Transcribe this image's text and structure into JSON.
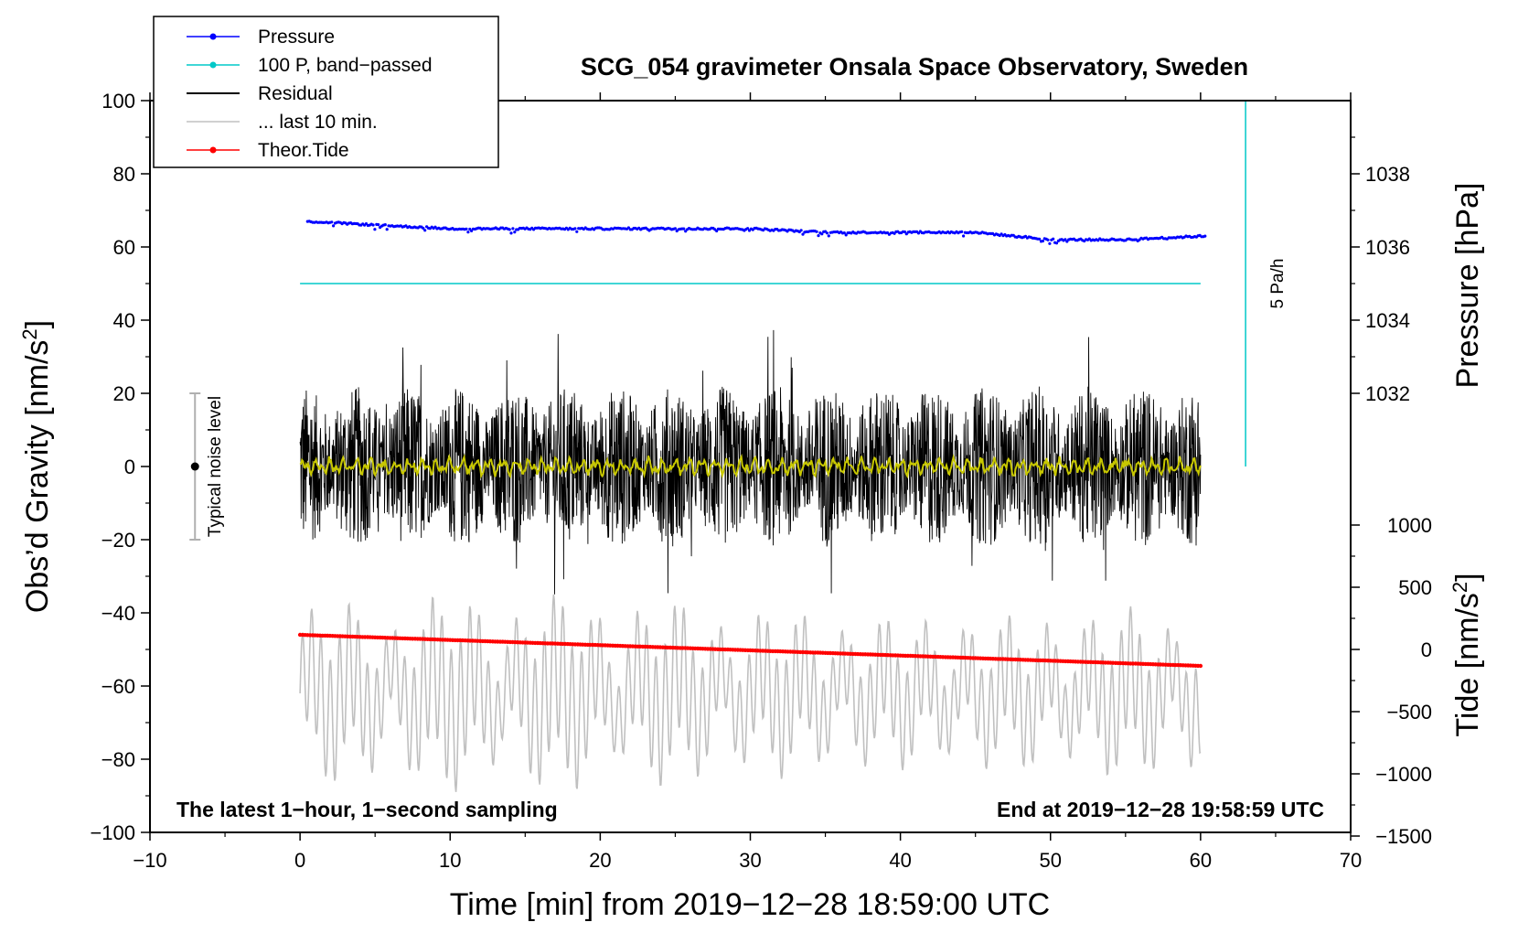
{
  "chart_data": {
    "type": "line",
    "title": "SCG_054 gravimeter Onsala Space Observatory, Sweden",
    "xlabel": "Time [min] from 2019−12−28 18:59:00 UTC",
    "ylabel_left": "Obs’d Gravity [nm/s",
    "ylabel_left_sup": "2",
    "ylabel_left_end": "]",
    "ylabel_right_pressure": "Pressure [hPa]",
    "ylabel_right_tide": "Tide [nm/s",
    "ylabel_right_tide_sup": "2",
    "ylabel_right_tide_end": "]",
    "xlim": [
      -10,
      70
    ],
    "ylim": [
      -100,
      100
    ],
    "x_ticks": [
      -10,
      0,
      10,
      20,
      30,
      40,
      50,
      60,
      70
    ],
    "x_tick_labels": [
      "−10",
      "0",
      "10",
      "20",
      "30",
      "40",
      "50",
      "60",
      "70"
    ],
    "y_ticks": [
      -100,
      -80,
      -60,
      -40,
      -20,
      0,
      20,
      40,
      60,
      80,
      100
    ],
    "y_tick_labels": [
      "−100",
      "−80",
      "−60",
      "−40",
      "−20",
      "0",
      "20",
      "40",
      "60",
      "80",
      "100"
    ],
    "pressure_axis": {
      "ticks": [
        1032,
        1034,
        1036,
        1038
      ],
      "tick_labels": [
        "1032",
        "1034",
        "1036",
        "1038"
      ],
      "gravity_at_1030": 0,
      "gravity_per_hpa": 10
    },
    "tide_axis": {
      "ticks": [
        1000,
        500,
        0,
        -500,
        -1000,
        -1500
      ],
      "tick_labels": [
        "1000",
        "500",
        "0",
        "−500",
        "−1000",
        "−1500"
      ],
      "gravity_at_0": -50,
      "gravity_per_unit": 0.034
    },
    "legend": {
      "position": "top-left",
      "entries": [
        {
          "label": "Pressure",
          "color": "#0000ff",
          "marker": true
        },
        {
          "label": "100 P, band−passed",
          "color": "#00c8c8",
          "marker": true
        },
        {
          "label": "Residual",
          "color": "#000000",
          "marker": false
        },
        {
          "label": "... last 10 min.",
          "color": "#c0c0c0",
          "marker": false
        },
        {
          "label": "Theor.Tide",
          "color": "#ff0000",
          "marker": true
        }
      ]
    },
    "series": [
      {
        "name": "Pressure (hPa)",
        "color": "#0000ff",
        "x": [
          0.5,
          5,
          10,
          15,
          20,
          25,
          30,
          35,
          40,
          45,
          50,
          55,
          60.3
        ],
        "values": [
          1036.7,
          1036.6,
          1036.5,
          1036.5,
          1036.5,
          1036.5,
          1036.5,
          1036.4,
          1036.4,
          1036.4,
          1036.2,
          1036.2,
          1036.3
        ]
      },
      {
        "name": "100 P, band-passed",
        "color": "#00c8c8",
        "x": [
          0,
          60
        ],
        "values": [
          50,
          50
        ]
      },
      {
        "name": "Residual",
        "color": "#000000",
        "x": [
          0,
          60
        ],
        "values": [
          0,
          0
        ],
        "amplitude": 22
      },
      {
        "name": "Smoothed residual",
        "color": "#c8c800",
        "x": [
          0,
          60
        ],
        "values": [
          0,
          0
        ]
      },
      {
        "name": "... last 10 min.",
        "color": "#c0c0c0",
        "x": [
          0,
          60
        ],
        "values": [
          -62,
          -62
        ],
        "amplitude": 20
      },
      {
        "name": "Theor.Tide",
        "color": "#ff0000",
        "x": [
          0,
          60
        ],
        "values": [
          -46,
          -54.5
        ]
      }
    ],
    "rate_bar": {
      "label": "5 Pa/h",
      "x": 63,
      "from": 0,
      "to": 100,
      "color": "#00c8c8"
    },
    "noise_bar": {
      "label": "Typical noise level",
      "x": -7,
      "center": 0,
      "low": -20,
      "high": 20
    },
    "annotations": {
      "left_note": "The latest 1−hour, 1−second sampling",
      "right_note": "End at 2019−12−28 19:58:59 UTC"
    }
  }
}
